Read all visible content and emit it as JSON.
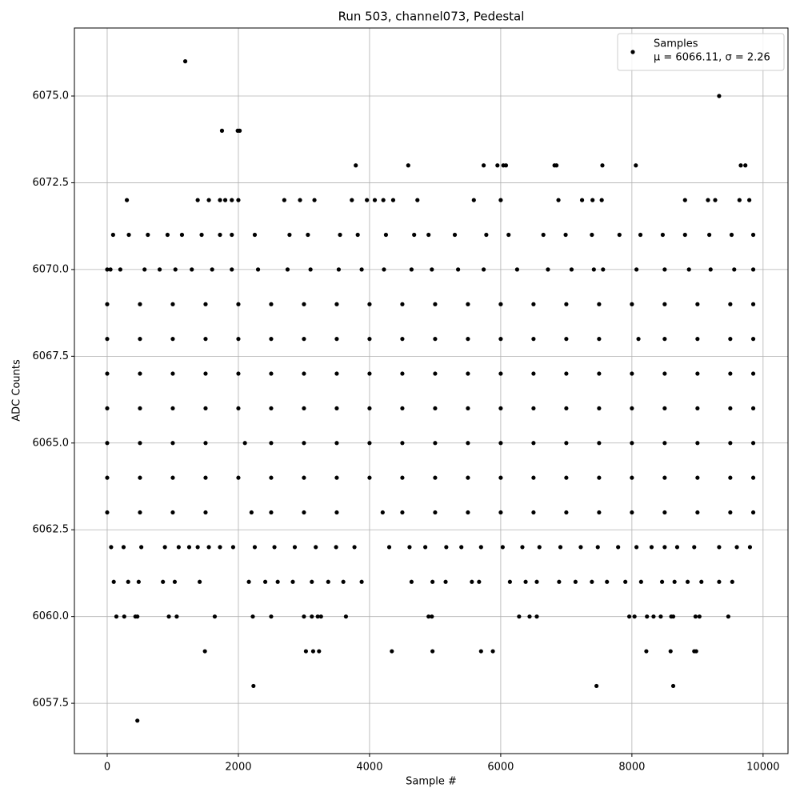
{
  "chart_data": {
    "type": "scatter",
    "title": "Run 503, channel073, Pedestal",
    "x_label": "Sample #",
    "y_label": "ADC Counts",
    "xlim": [
      -500,
      10380
    ],
    "ylim": [
      6056.05,
      6076.96
    ],
    "xticks": [
      0,
      2000,
      4000,
      6000,
      8000,
      10000
    ],
    "yticks": [
      {
        "value": 6057.5,
        "label": "6057.5"
      },
      {
        "value": 6060,
        "label": "6060.0"
      },
      {
        "value": 6062.5,
        "label": "6062.5"
      },
      {
        "value": 6065,
        "label": "6065.0"
      },
      {
        "value": 6067.5,
        "label": "6067.5"
      },
      {
        "value": 6070,
        "label": "6070.0"
      },
      {
        "value": 6072.5,
        "label": "6072.5"
      },
      {
        "value": 6075,
        "label": "6075.0"
      }
    ],
    "grid": true,
    "legend": "upper right",
    "legend_note": "μ = 6066.11, σ = 2.26",
    "series": [
      {
        "name": "Samples",
        "color": "#000000",
        "x": [
          0,
          500,
          1000,
          1500,
          2000,
          2500,
          3000,
          3500,
          4000,
          4500,
          5000,
          5500,
          6000,
          6500,
          7000,
          7500,
          8000,
          8500,
          9000,
          9500,
          9850,
          0,
          500,
          1000,
          1500,
          2000,
          2500,
          3000,
          3500,
          4000,
          4500,
          5000,
          5500,
          6000,
          6500,
          7000,
          7500,
          8100,
          8500,
          9000,
          9500,
          9850,
          0,
          500,
          1000,
          1500,
          2000,
          2500,
          3000,
          3500,
          4000,
          4500,
          5000,
          5500,
          6000,
          6500,
          7000,
          7500,
          8000,
          8500,
          9000,
          9500,
          9850,
          0,
          500,
          1000,
          1500,
          2000,
          2500,
          3000,
          3500,
          4000,
          4500,
          5000,
          5500,
          6000,
          6500,
          7000,
          7500,
          8000,
          8500,
          9000,
          9500,
          9850,
          0,
          500,
          1000,
          1500,
          2100,
          2500,
          3000,
          3500,
          4000,
          4500,
          5000,
          5500,
          6000,
          6500,
          7000,
          7500,
          8000,
          8500,
          9000,
          9500,
          9850,
          0,
          500,
          1000,
          1500,
          2000,
          2500,
          3000,
          3500,
          4000,
          4500,
          5000,
          5500,
          6000,
          6500,
          7000,
          7500,
          8000,
          8500,
          9000,
          9500,
          9850,
          0,
          500,
          1000,
          1500,
          2200,
          2500,
          3000,
          3500,
          4200,
          4500,
          5000,
          5500,
          6000,
          6500,
          7000,
          7500,
          8000,
          8500,
          9000,
          9500,
          9850,
          90,
          330,
          620,
          920,
          1140,
          1440,
          1720,
          1900,
          2250,
          2780,
          3060,
          3550,
          3820,
          4250,
          4680,
          4900,
          5300,
          5780,
          6120,
          6650,
          6990,
          7390,
          7810,
          8130,
          8470,
          8810,
          9180,
          9520,
          9850,
          0,
          50,
          200,
          570,
          800,
          1040,
          1290,
          1600,
          1900,
          2300,
          2750,
          3100,
          3530,
          3880,
          4220,
          4640,
          4950,
          5350,
          5740,
          6250,
          6720,
          7080,
          7420,
          7560,
          8070,
          8500,
          8870,
          9200,
          9560,
          9850,
          60,
          250,
          520,
          880,
          1090,
          1250,
          1380,
          1550,
          1720,
          1920,
          2250,
          2550,
          2860,
          3180,
          3490,
          3770,
          4300,
          4610,
          4850,
          5170,
          5400,
          5700,
          6030,
          6330,
          6590,
          6910,
          7220,
          7480,
          7790,
          8070,
          8300,
          8500,
          8690,
          8950,
          9330,
          9600,
          9800,
          100,
          320,
          480,
          850,
          1030,
          1410,
          2160,
          2410,
          2600,
          2830,
          3120,
          3370,
          3600,
          3880,
          4640,
          4960,
          5160,
          5560,
          5670,
          6140,
          6380,
          6550,
          6890,
          7140,
          7390,
          7620,
          7900,
          8140,
          8460,
          8650,
          8850,
          9060,
          9330,
          9530,
          140,
          260,
          430,
          460,
          940,
          1060,
          1640,
          2220,
          2500,
          3000,
          3120,
          3210,
          3260,
          3640,
          4900,
          4950,
          6280,
          6440,
          6550,
          7960,
          8040,
          8230,
          8330,
          8440,
          8600,
          8630,
          8970,
          9030,
          9470,
          1490,
          3030,
          3140,
          3230,
          4340,
          4960,
          5700,
          5880,
          8220,
          8590,
          8950,
          8980,
          2230,
          7460,
          8630,
          460,
          300,
          1380,
          1550,
          1720,
          1800,
          1900,
          2000,
          2700,
          2940,
          3160,
          3730,
          3960,
          4080,
          4210,
          4360,
          4730,
          5590,
          6000,
          6880,
          7240,
          7400,
          7540,
          8810,
          9160,
          9270,
          9640,
          9790,
          3790,
          4590,
          5740,
          5950,
          6040,
          6080,
          6820,
          6850,
          7550,
          8060,
          9660,
          9730,
          1750,
          1990,
          2020,
          9330,
          1190
        ],
        "values": [
          6069,
          6069,
          6069,
          6069,
          6069,
          6069,
          6069,
          6069,
          6069,
          6069,
          6069,
          6069,
          6069,
          6069,
          6069,
          6069,
          6069,
          6069,
          6069,
          6069,
          6069,
          6068,
          6068,
          6068,
          6068,
          6068,
          6068,
          6068,
          6068,
          6068,
          6068,
          6068,
          6068,
          6068,
          6068,
          6068,
          6068,
          6068,
          6068,
          6068,
          6068,
          6068,
          6067,
          6067,
          6067,
          6067,
          6067,
          6067,
          6067,
          6067,
          6067,
          6067,
          6067,
          6067,
          6067,
          6067,
          6067,
          6067,
          6067,
          6067,
          6067,
          6067,
          6067,
          6066,
          6066,
          6066,
          6066,
          6066,
          6066,
          6066,
          6066,
          6066,
          6066,
          6066,
          6066,
          6066,
          6066,
          6066,
          6066,
          6066,
          6066,
          6066,
          6066,
          6066,
          6065,
          6065,
          6065,
          6065,
          6065,
          6065,
          6065,
          6065,
          6065,
          6065,
          6065,
          6065,
          6065,
          6065,
          6065,
          6065,
          6065,
          6065,
          6065,
          6065,
          6065,
          6064,
          6064,
          6064,
          6064,
          6064,
          6064,
          6064,
          6064,
          6064,
          6064,
          6064,
          6064,
          6064,
          6064,
          6064,
          6064,
          6064,
          6064,
          6064,
          6064,
          6064,
          6063,
          6063,
          6063,
          6063,
          6063,
          6063,
          6063,
          6063,
          6063,
          6063,
          6063,
          6063,
          6063,
          6063,
          6063,
          6063,
          6063,
          6063,
          6063,
          6063,
          6063,
          6071,
          6071,
          6071,
          6071,
          6071,
          6071,
          6071,
          6071,
          6071,
          6071,
          6071,
          6071,
          6071,
          6071,
          6071,
          6071,
          6071,
          6071,
          6071,
          6071,
          6071,
          6071,
          6071,
          6071,
          6071,
          6071,
          6071,
          6071,
          6071,
          6070,
          6070,
          6070,
          6070,
          6070,
          6070,
          6070,
          6070,
          6070,
          6070,
          6070,
          6070,
          6070,
          6070,
          6070,
          6070,
          6070,
          6070,
          6070,
          6070,
          6070,
          6070,
          6070,
          6070,
          6070,
          6070,
          6070,
          6070,
          6070,
          6070,
          6062,
          6062,
          6062,
          6062,
          6062,
          6062,
          6062,
          6062,
          6062,
          6062,
          6062,
          6062,
          6062,
          6062,
          6062,
          6062,
          6062,
          6062,
          6062,
          6062,
          6062,
          6062,
          6062,
          6062,
          6062,
          6062,
          6062,
          6062,
          6062,
          6062,
          6062,
          6062,
          6062,
          6062,
          6062,
          6062,
          6062,
          6061,
          6061,
          6061,
          6061,
          6061,
          6061,
          6061,
          6061,
          6061,
          6061,
          6061,
          6061,
          6061,
          6061,
          6061,
          6061,
          6061,
          6061,
          6061,
          6061,
          6061,
          6061,
          6061,
          6061,
          6061,
          6061,
          6061,
          6061,
          6061,
          6061,
          6061,
          6061,
          6061,
          6061,
          6060,
          6060,
          6060,
          6060,
          6060,
          6060,
          6060,
          6060,
          6060,
          6060,
          6060,
          6060,
          6060,
          6060,
          6060,
          6060,
          6060,
          6060,
          6060,
          6060,
          6060,
          6060,
          6060,
          6060,
          6060,
          6060,
          6060,
          6060,
          6060,
          6059,
          6059,
          6059,
          6059,
          6059,
          6059,
          6059,
          6059,
          6059,
          6059,
          6059,
          6059,
          6058,
          6058,
          6058,
          6057,
          6072,
          6072,
          6072,
          6072,
          6072,
          6072,
          6072,
          6072,
          6072,
          6072,
          6072,
          6072,
          6072,
          6072,
          6072,
          6072,
          6072,
          6072,
          6072,
          6072,
          6072,
          6072,
          6072,
          6072,
          6072,
          6072,
          6072,
          6073,
          6073,
          6073,
          6073,
          6073,
          6073,
          6073,
          6073,
          6073,
          6073,
          6073,
          6073,
          6074,
          6074,
          6074,
          6075,
          6076
        ]
      }
    ]
  }
}
